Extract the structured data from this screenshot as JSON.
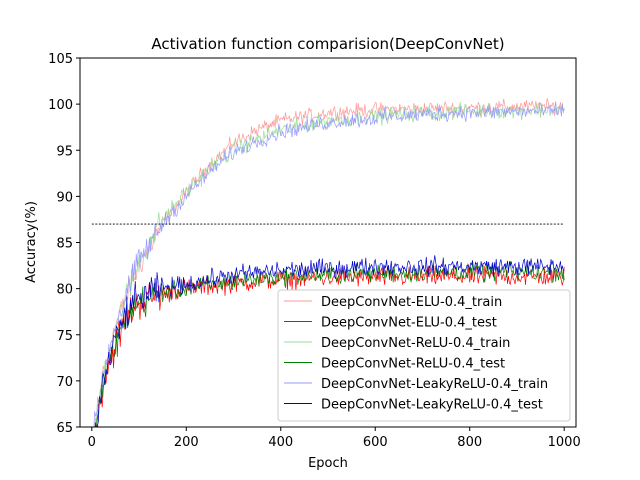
{
  "chart_data": {
    "type": "line",
    "title": "Activation function comparision(DeepConvNet)",
    "xlabel": "Epoch",
    "ylabel": "Accuracy(%)",
    "xlim": [
      -25,
      1025
    ],
    "ylim": [
      65,
      105
    ],
    "xticks": [
      0,
      200,
      400,
      600,
      800,
      1000
    ],
    "yticks": [
      65,
      70,
      75,
      80,
      85,
      90,
      95,
      100,
      105
    ],
    "grid": false,
    "legend_position": "lower right",
    "reference_line": {
      "y": 87,
      "x_range": [
        0,
        1000
      ],
      "style": "dashed",
      "color": "#000000"
    },
    "series": [
      {
        "name": "DeepConvNet-ELU-0.4_train",
        "color": "#ff9999",
        "noise": 0.55,
        "x": [
          0,
          25,
          50,
          100,
          150,
          200,
          250,
          300,
          350,
          400,
          500,
          600,
          700,
          800,
          900,
          1000
        ],
        "y": [
          63,
          71,
          76,
          82.5,
          87,
          90.5,
          93.5,
          95.8,
          97.2,
          98.2,
          99.1,
          99.4,
          99.5,
          99.6,
          99.7,
          99.7
        ]
      },
      {
        "name": "DeepConvNet-ELU-0.4_test",
        "color": "#ff0000",
        "noise": 0.75,
        "x": [
          0,
          25,
          50,
          75,
          100,
          150,
          200,
          300,
          400,
          500,
          600,
          700,
          800,
          900,
          1000
        ],
        "y": [
          62,
          70,
          74,
          77,
          78.5,
          79.5,
          80,
          80.6,
          81,
          81.2,
          81.2,
          81.3,
          81.3,
          81.3,
          81.3
        ]
      },
      {
        "name": "DeepConvNet-ReLU-0.4_train",
        "color": "#99dd99",
        "noise": 0.6,
        "x": [
          0,
          25,
          50,
          100,
          150,
          200,
          250,
          300,
          350,
          400,
          500,
          600,
          700,
          800,
          900,
          1000
        ],
        "y": [
          63,
          71,
          76,
          83,
          87.5,
          90.5,
          93,
          95,
          96.2,
          97.2,
          98.2,
          98.7,
          99,
          99.2,
          99.3,
          99.4
        ]
      },
      {
        "name": "DeepConvNet-ReLU-0.4_test",
        "color": "#008000",
        "noise": 0.7,
        "x": [
          0,
          25,
          50,
          75,
          100,
          150,
          200,
          300,
          400,
          500,
          600,
          700,
          800,
          900,
          1000
        ],
        "y": [
          62,
          70,
          74,
          77,
          78.5,
          79.5,
          80,
          80.8,
          81.3,
          81.5,
          81.7,
          81.7,
          81.8,
          81.8,
          81.8
        ]
      },
      {
        "name": "DeepConvNet-LeakyReLU-0.4_train",
        "color": "#9999ff",
        "noise": 0.6,
        "x": [
          0,
          25,
          50,
          100,
          150,
          200,
          250,
          300,
          350,
          400,
          500,
          600,
          700,
          800,
          900,
          1000
        ],
        "y": [
          63,
          71,
          76,
          83,
          87,
          90,
          92.8,
          94.8,
          96,
          97,
          98,
          98.5,
          98.9,
          99.1,
          99.2,
          99.3
        ]
      },
      {
        "name": "DeepConvNet-LeakyReLU-0.4_test",
        "color": "#0000cc",
        "noise": 0.7,
        "x": [
          0,
          25,
          50,
          75,
          100,
          150,
          200,
          300,
          400,
          500,
          600,
          700,
          800,
          900,
          1000
        ],
        "y": [
          62,
          70,
          74.5,
          77.5,
          79,
          80,
          80.5,
          81.5,
          82,
          82.2,
          82.4,
          82.4,
          82.4,
          82.4,
          82.4
        ]
      }
    ]
  }
}
